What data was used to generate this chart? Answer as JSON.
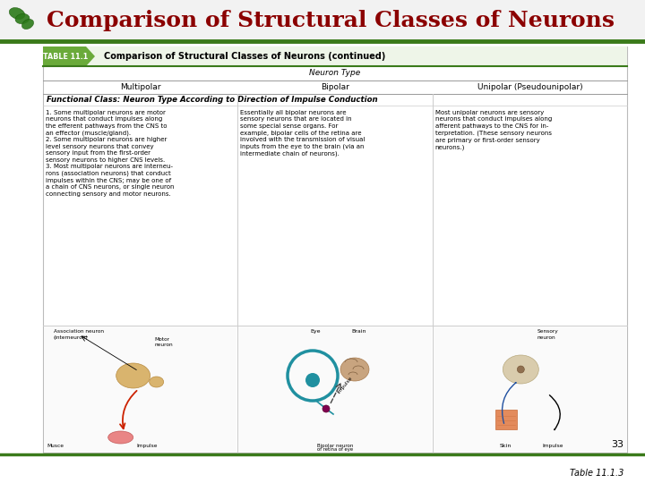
{
  "title": "Comparison of Structural Classes of Neurons",
  "title_color": "#8B0000",
  "title_fontsize": 18,
  "green_line_color": "#3a7a1a",
  "table_title": "Comparison of Structural Classes of Neurons (continued)",
  "table_number": "TABLE 11.1",
  "neuron_type_label": "Neuron Type",
  "columns": [
    "Multipolar",
    "Bipolar",
    "Unipolar (Pseudounipolar)"
  ],
  "functional_class_header": "Functional Class: Neuron Type According to Direction of Impulse Conduction",
  "col1_text_1": "1. Some multipolar neurons are motor\nneurons that conduct impulses along\nthe efferent pathways from the CNS to\nan effector (muscle/gland).",
  "col1_text_2": "2. Some multipolar neurons are higher\nlevel sensory neurons that convey\nsensory input from the first-order\nsensory neurons to higher CNS levels.",
  "col1_text_3": "3. Most multipolar neurons are interneu-\nrons (association neurons) that conduct\nimpulses within the CNS; may be one of\na chain of CNS neurons, or single neuron\nconnecting sensory and motor neurons.",
  "col2_text": "Essentially all bipolar neurons are\nsensory neurons that are located in\nsome special sense organs. For\nexample, bipolar cells of the retina are\ninvolved with the transmission of visual\ninputs from the eye to the brain (via an\nintermediate chain of neurons).",
  "col3_text": "Most unipolar neurons are sensory\nneurons that conduct impulses along\nafferent pathways to the CNS for in-\nterpretation. (These sensory neurons\nare primary or first-order sensory\nneurons.)",
  "page_number": "33",
  "table_ref": "Table 11.1.3",
  "background_color": "#ffffff",
  "green_dark": "#4a7a2a",
  "green_tab": "#6aaa3a",
  "logo_color": "#2d7a1a",
  "header_bg": "#f2f2f2"
}
